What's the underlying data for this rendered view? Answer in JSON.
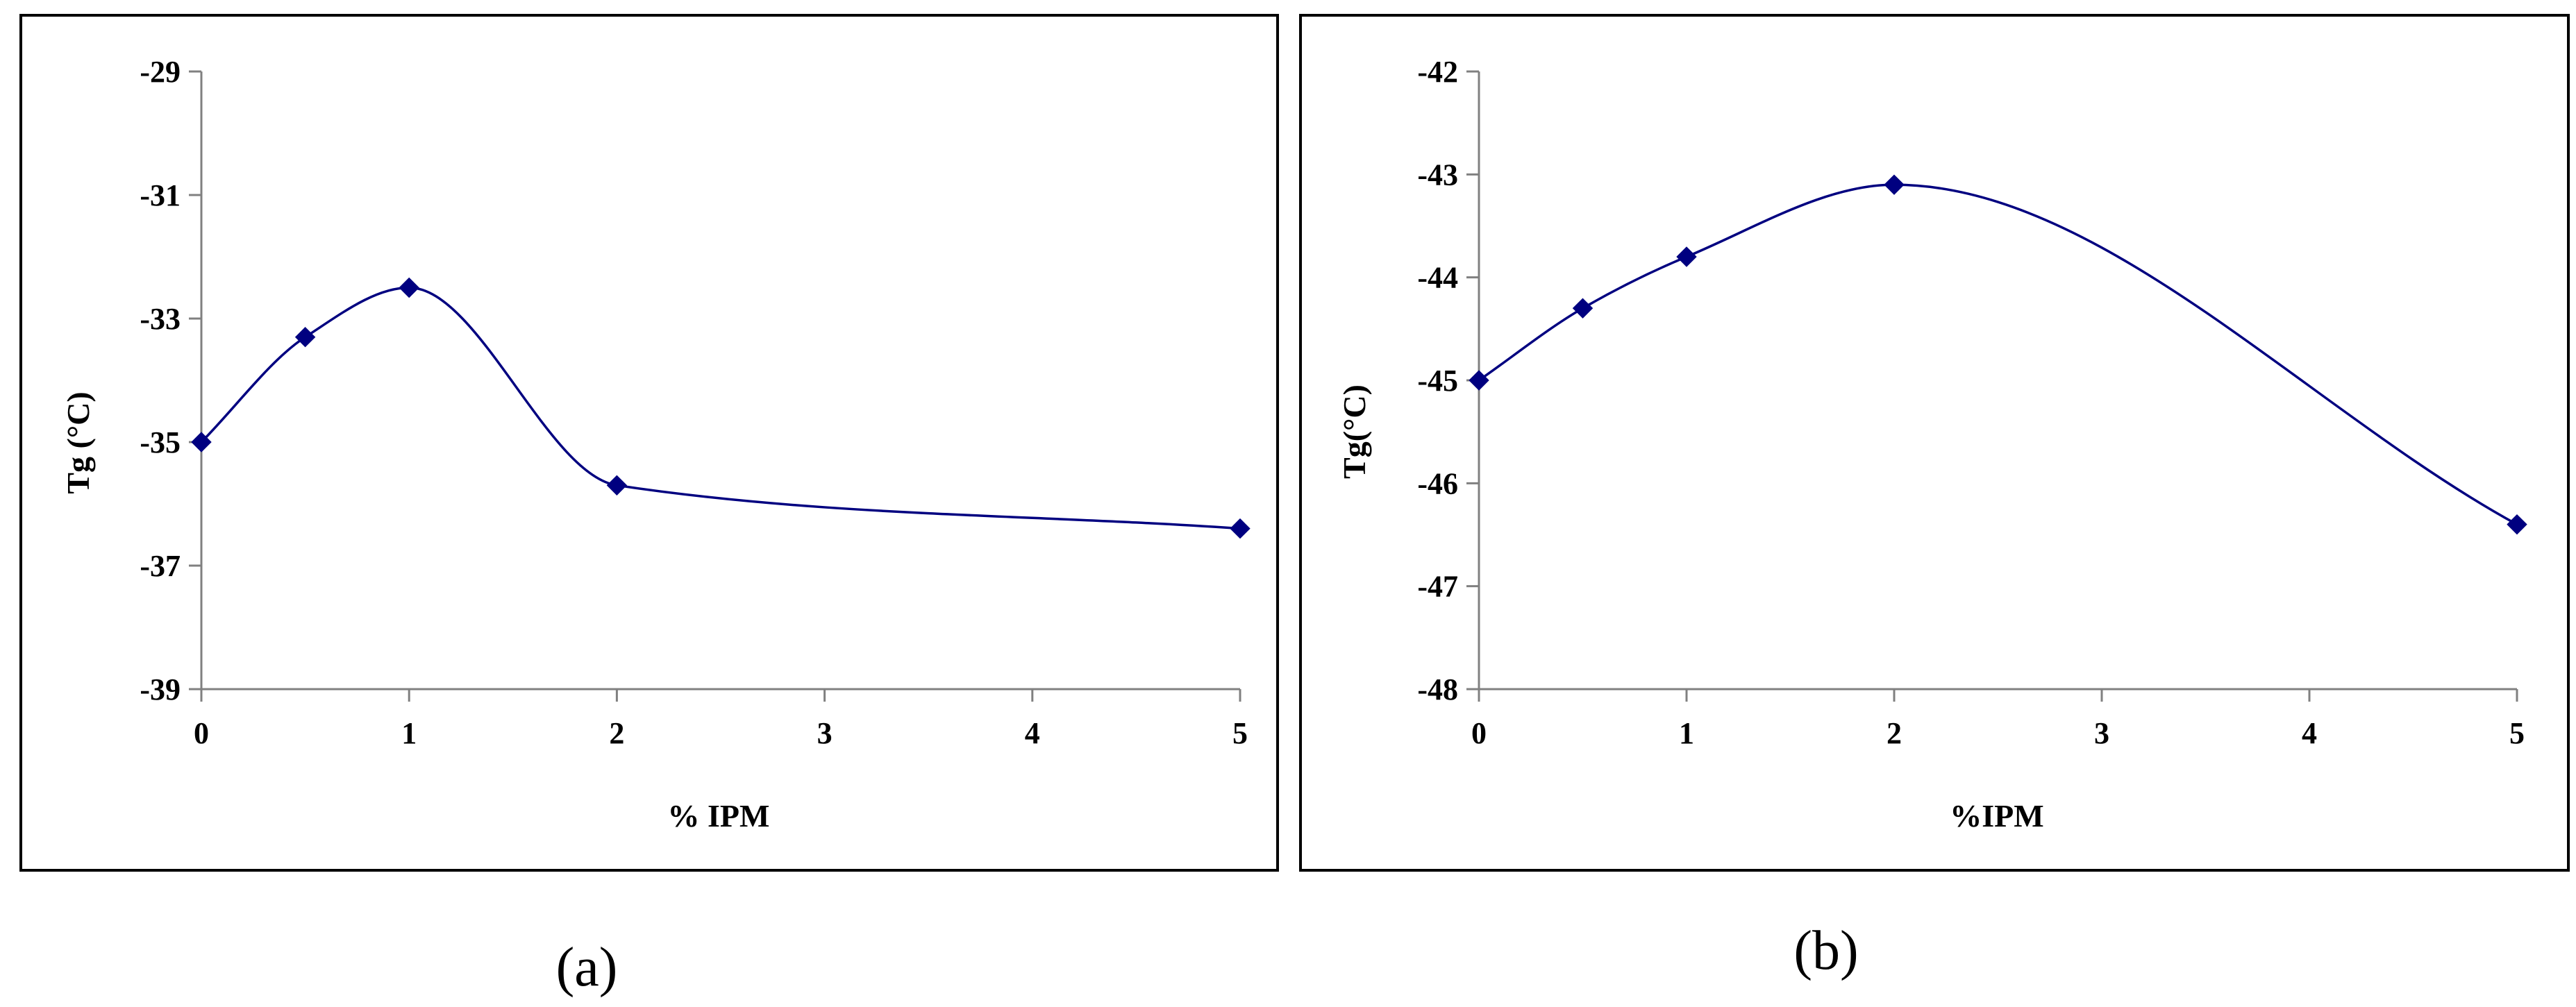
{
  "chart_data": [
    {
      "type": "line",
      "caption": "(a)",
      "xlabel": "% IPM",
      "ylabel": "Tg (°C)",
      "x_ticks": [
        0,
        1,
        2,
        3,
        4,
        5
      ],
      "y_ticks": [
        -29,
        -31,
        -33,
        -35,
        -37,
        -39
      ],
      "xlim": [
        0,
        5
      ],
      "ylim": [
        -39,
        -29
      ],
      "grid": false,
      "legend": "none",
      "line_color": "#000080",
      "marker": "diamond",
      "smooth": true,
      "x": [
        0,
        0.5,
        1,
        2,
        5
      ],
      "y": [
        -35.0,
        -33.3,
        -32.5,
        -35.7,
        -36.4
      ]
    },
    {
      "type": "line",
      "caption": "(b)",
      "xlabel": "%IPM",
      "ylabel": "Tg(°C)",
      "x_ticks": [
        0,
        1,
        2,
        3,
        4,
        5
      ],
      "y_ticks": [
        -42,
        -43,
        -44,
        -45,
        -46,
        -47,
        -48
      ],
      "xlim": [
        0,
        5
      ],
      "ylim": [
        -48,
        -42
      ],
      "grid": false,
      "legend": "none",
      "line_color": "#000080",
      "marker": "diamond",
      "smooth": true,
      "x": [
        0,
        0.5,
        1,
        2,
        5
      ],
      "y": [
        -45.0,
        -44.3,
        -43.8,
        -43.1,
        -46.4
      ]
    }
  ]
}
